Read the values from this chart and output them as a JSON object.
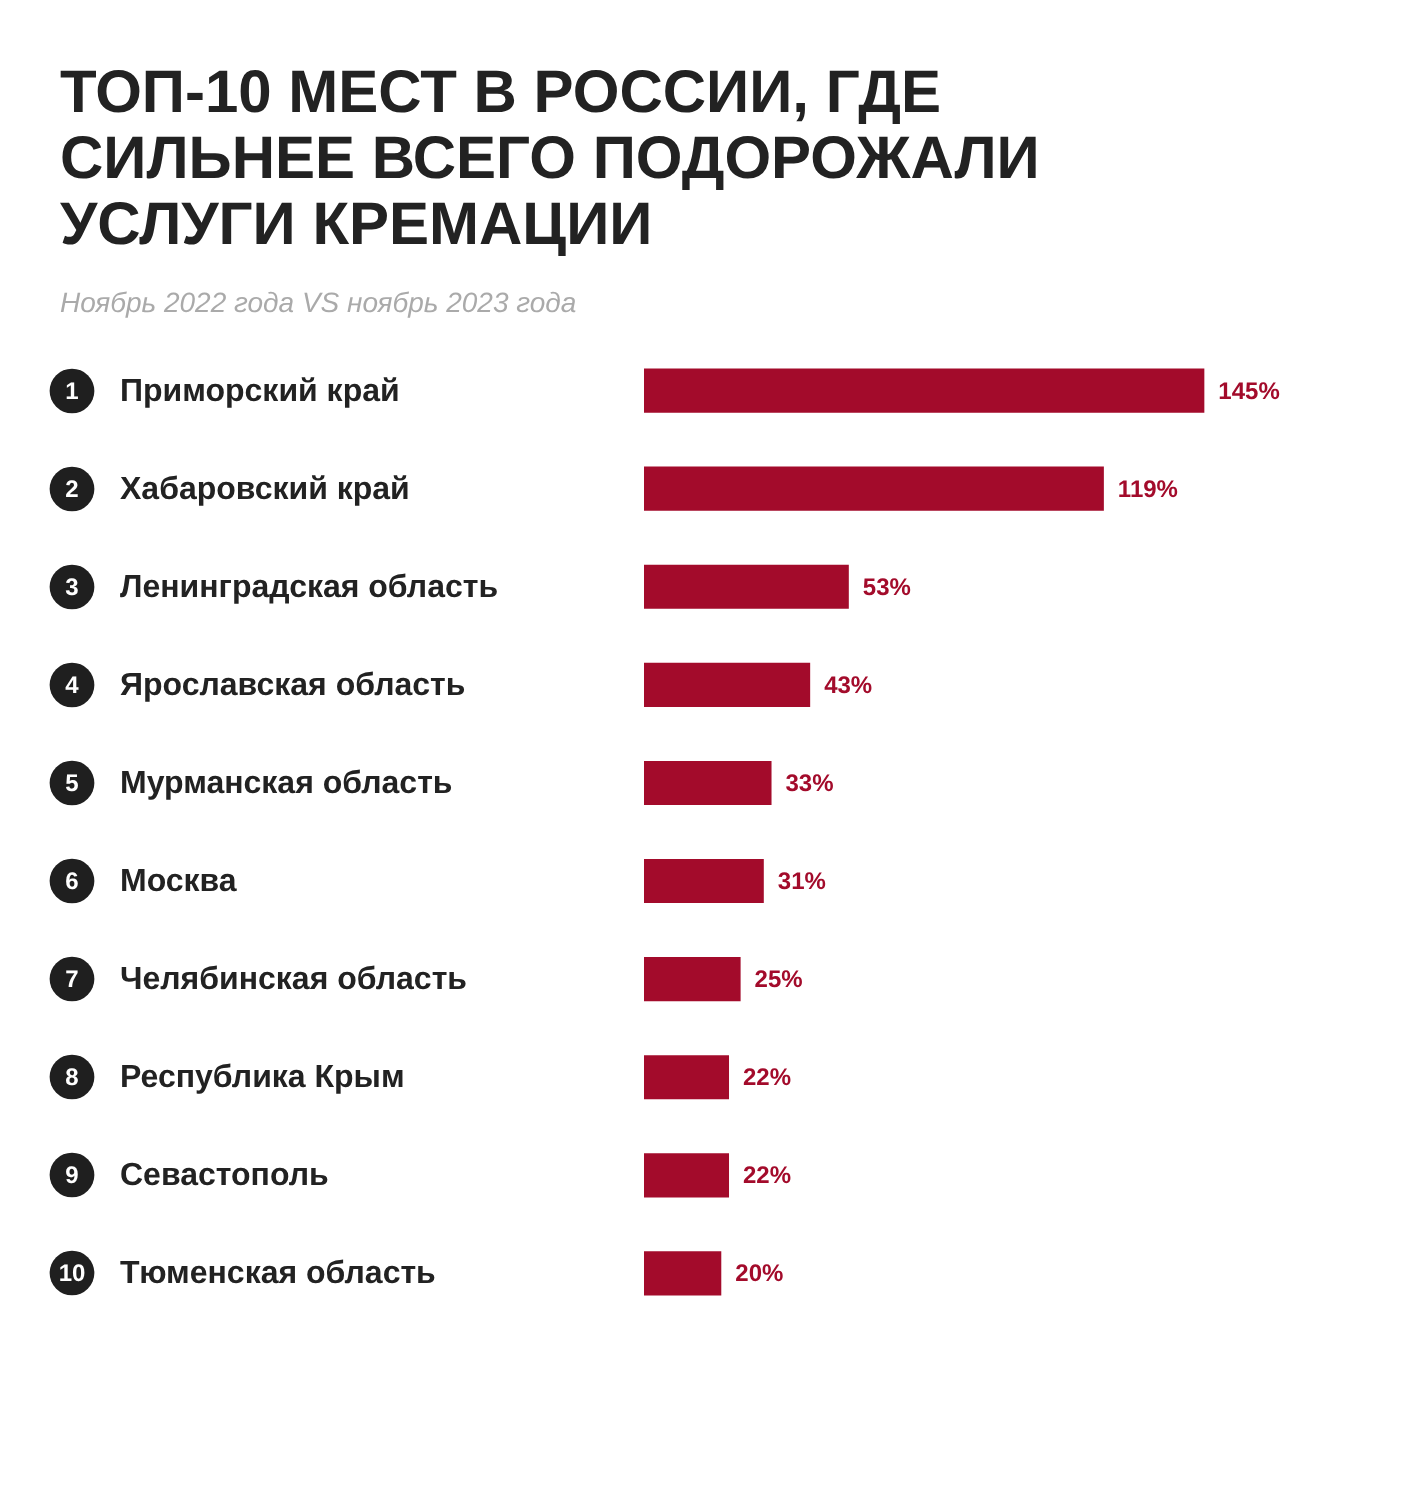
{
  "chart_data": {
    "type": "bar",
    "orientation": "horizontal",
    "title": "ТОП-10 МЕСТ В РОССИИ, ГДЕ СИЛЬНЕЕ ВСЕГО ПОДОРОЖАЛИ УСЛУГИ КРЕМАЦИИ",
    "subtitle": "Ноябрь 2022 года VS ноябрь 2023 года",
    "categories": [
      "1 Приморский край",
      "2 Хабаровский край",
      "3 Ленинградская область",
      "4 Ярославская область",
      "5 Мурманская область",
      "6 Москва",
      "7 Челябинская область",
      "8 Республика Крым",
      "9 Севастополь",
      "10 Тюменская область"
    ],
    "values": [
      145,
      119,
      53,
      43,
      33,
      31,
      25,
      22,
      22,
      20
    ],
    "value_labels": [
      "145%",
      "119%",
      "53%",
      "43%",
      "33%",
      "31%",
      "25%",
      "22%",
      "22%",
      "20%"
    ],
    "color": "#a30b2b"
  }
}
